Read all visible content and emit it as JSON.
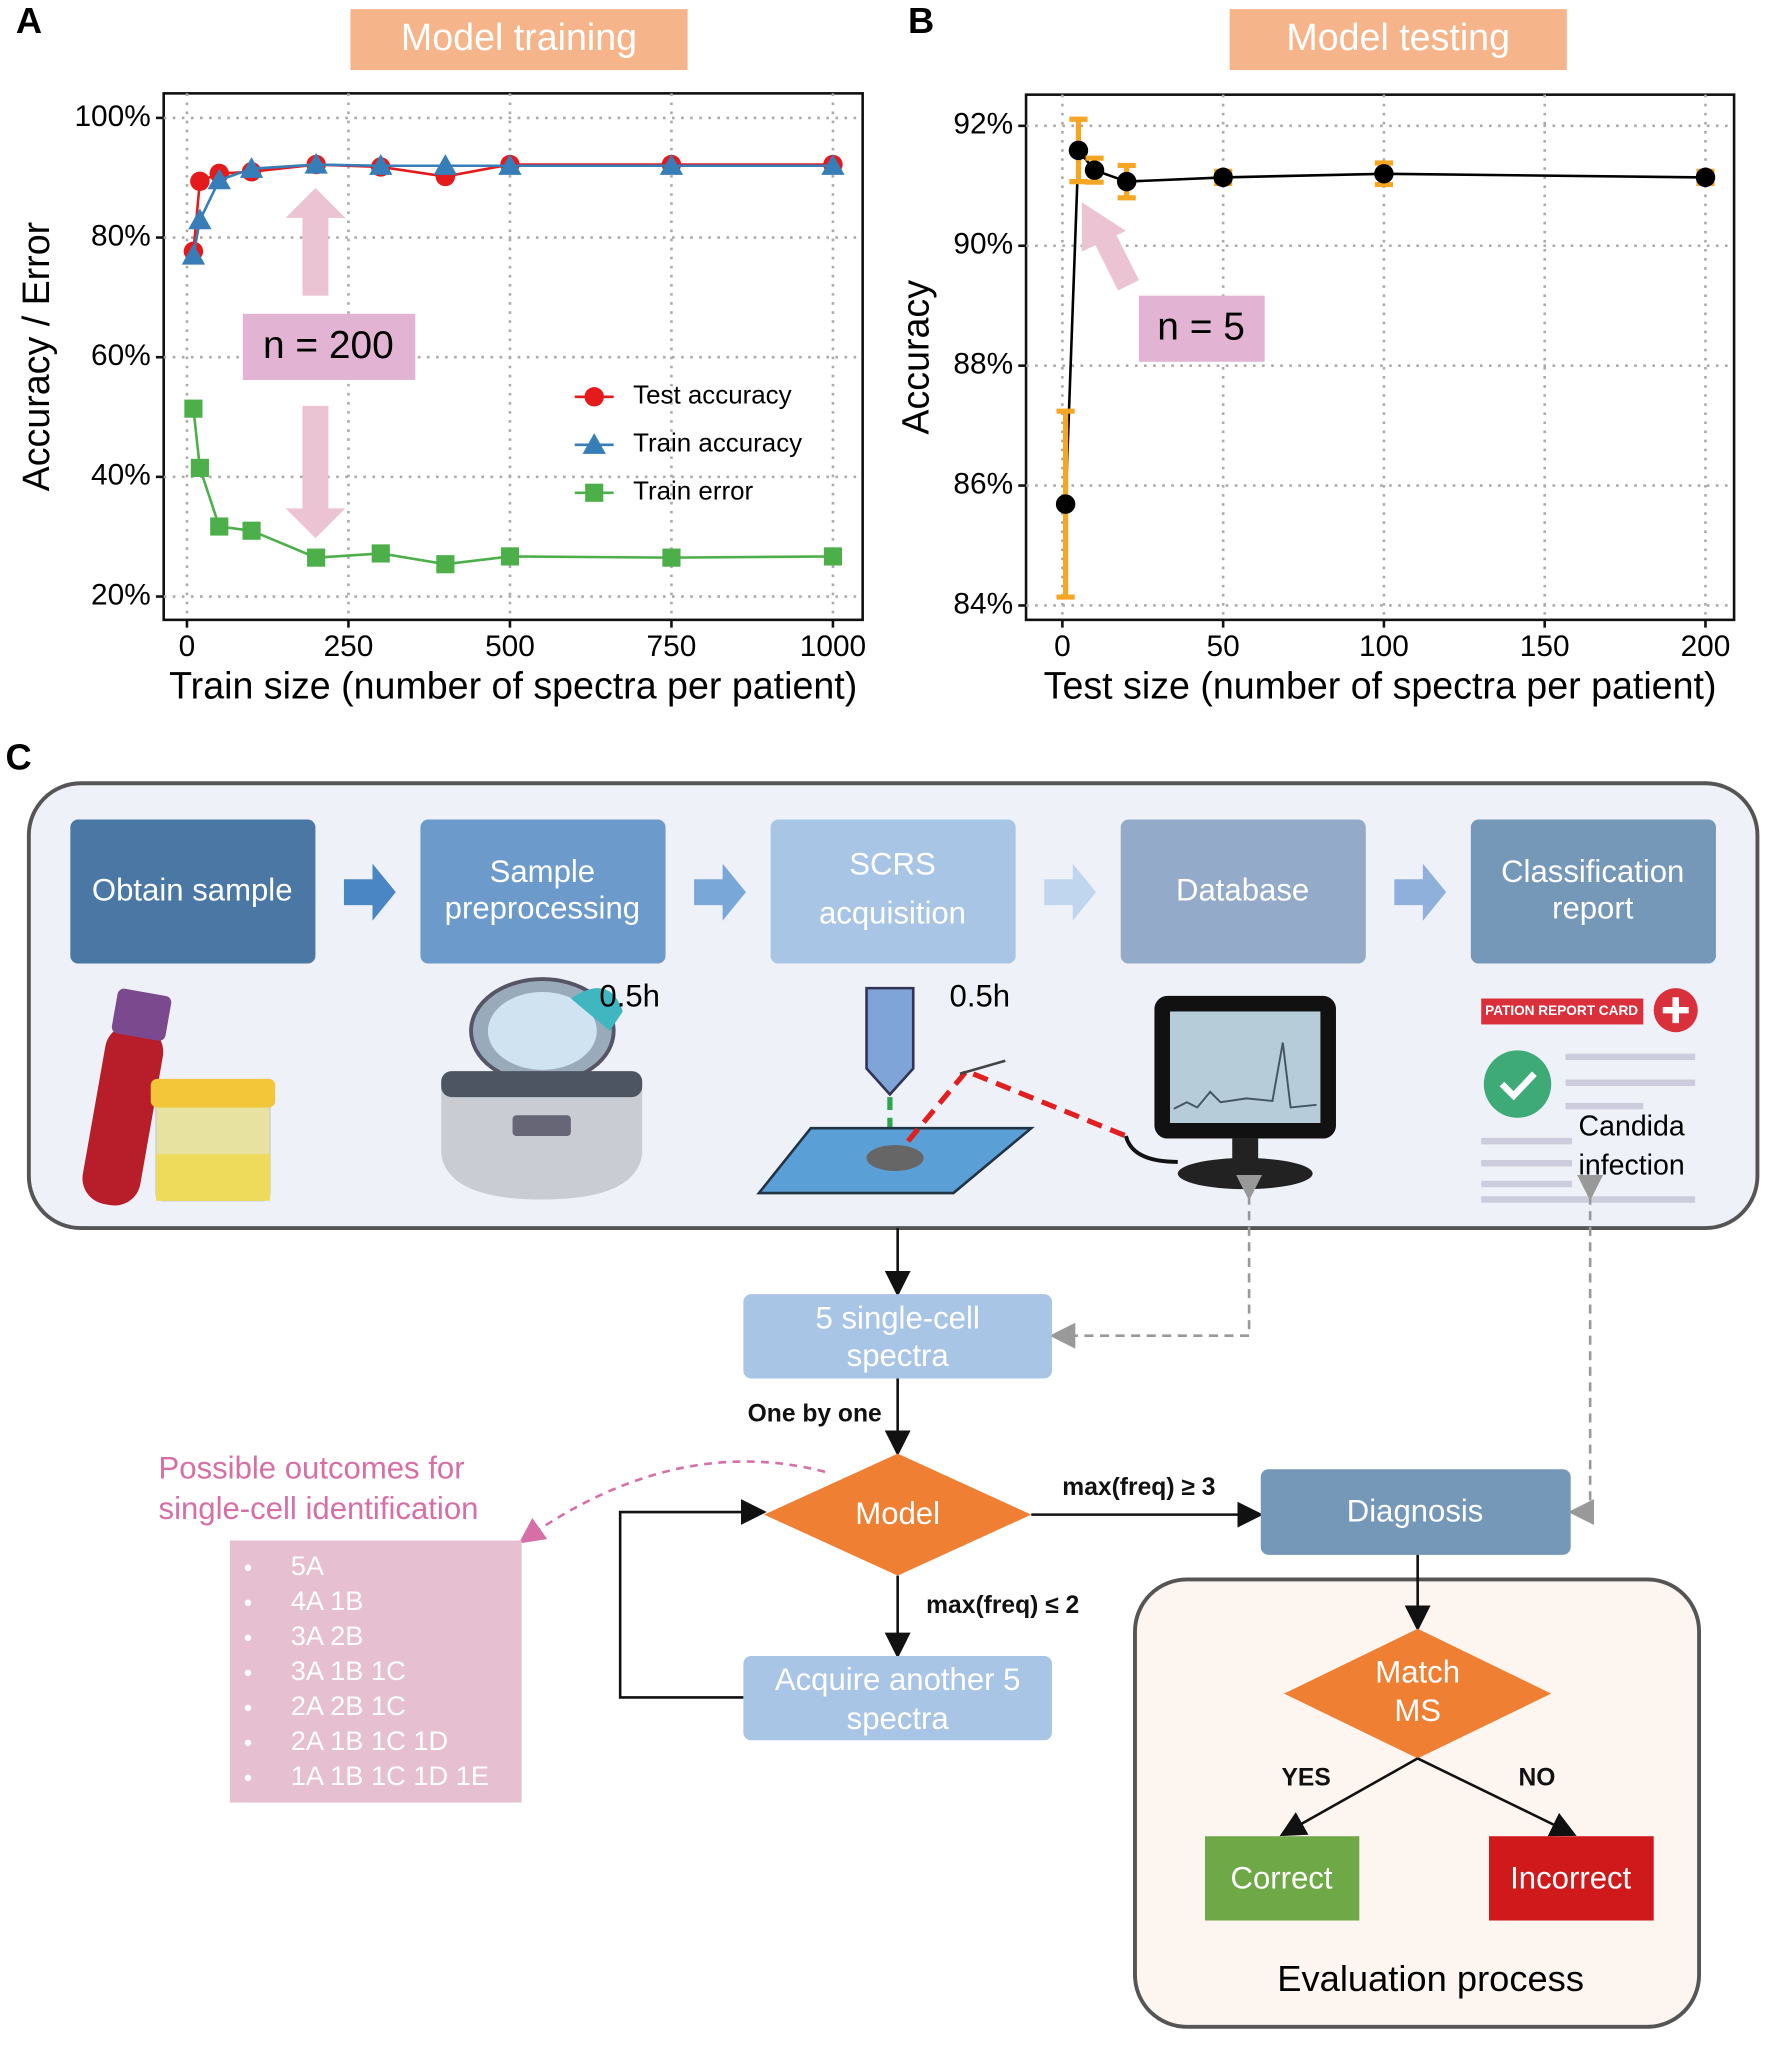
{
  "chart_data": [
    {
      "type": "line",
      "panel": "A",
      "title": "Model training",
      "xlabel": "Train size (number of spectra per patient)",
      "ylabel": "Accuracy / Error",
      "x": [
        10,
        20,
        50,
        100,
        200,
        300,
        400,
        500,
        750,
        1000
      ],
      "series": [
        {
          "name": "Test accuracy",
          "color": "#e41a1c",
          "marker": "circle",
          "values": [
            77.7,
            89.4,
            90.7,
            91.0,
            92.2,
            91.8,
            90.2,
            92.2,
            92.2,
            92.2
          ]
        },
        {
          "name": "Train accuracy",
          "color": "#377eb8",
          "marker": "triangle",
          "values": [
            77.0,
            82.9,
            89.6,
            91.5,
            92.2,
            92.0,
            92.0,
            92.0,
            92.0,
            92.0
          ]
        },
        {
          "name": "Train error",
          "color": "#4daf4a",
          "marker": "square",
          "values": [
            51.4,
            41.5,
            31.7,
            31.0,
            26.5,
            27.2,
            25.4,
            26.7,
            26.5,
            26.7
          ]
        }
      ],
      "xlim": [
        -36,
        1046
      ],
      "xticks": [
        0,
        250,
        500,
        750,
        1000
      ],
      "ylim": [
        16.1,
        104.1
      ],
      "yticks": [
        {
          "value": 20,
          "label": "20%"
        },
        {
          "value": 40,
          "label": "40%"
        },
        {
          "value": 60,
          "label": "60%"
        },
        {
          "value": 80,
          "label": "80%"
        },
        {
          "value": 100,
          "label": "100%"
        }
      ],
      "grid": true,
      "legend": "right",
      "annotation": "n = 200"
    },
    {
      "type": "errorbar",
      "panel": "B",
      "title": "Model testing",
      "xlabel": "Test size (number of spectra per patient)",
      "ylabel": "Accuracy",
      "x": [
        1,
        5,
        10,
        20,
        50,
        100,
        200
      ],
      "values": [
        85.69,
        91.59,
        91.26,
        91.07,
        91.14,
        91.2,
        91.14
      ],
      "errors": [
        1.55,
        0.52,
        0.2,
        0.27,
        0.1,
        0.18,
        0.1
      ],
      "color": "#000000",
      "error_color": "#f5a623",
      "xlim": [
        -11.3,
        208.9
      ],
      "xticks": [
        0,
        50,
        100,
        150,
        200
      ],
      "ylim": [
        83.76,
        92.52
      ],
      "yticks": [
        {
          "value": 84,
          "label": "84%"
        },
        {
          "value": 86,
          "label": "86%"
        },
        {
          "value": 88,
          "label": "88%"
        },
        {
          "value": 90,
          "label": "90%"
        },
        {
          "value": 92,
          "label": "92%"
        }
      ],
      "grid": true,
      "annotation": "n = 5"
    }
  ],
  "diagram": {
    "panel": "C",
    "steps": [
      [
        "Obtain sample"
      ],
      [
        "Sample",
        "preprocessing"
      ],
      [
        "SCRS",
        "acquisition"
      ],
      [
        "Database"
      ],
      [
        "Classification",
        "report"
      ]
    ],
    "times": [
      "0.5h",
      "0.5h"
    ],
    "report_card": "PATION REPORT CARD",
    "report_result": [
      "Candida",
      "infection"
    ],
    "spectra": [
      "5 single-cell",
      "spectra"
    ],
    "one_by_one": "One by one",
    "model": "Model",
    "cond_high": "max(freq) ≥ 3",
    "cond_low": "max(freq) ≤ 2",
    "acquire": [
      "Acquire another 5",
      "spectra"
    ],
    "diagnosis": "Diagnosis",
    "match": [
      "Match",
      "MS"
    ],
    "yes": "YES",
    "no": "NO",
    "correct": "Correct",
    "incorrect": "Incorrect",
    "evaluation": "Evaluation process",
    "outcomes_title": [
      "Possible outcomes for",
      "single-cell identification"
    ],
    "outcomes": [
      "5A",
      "4A 1B",
      "3A 2B",
      "3A 1B 1C",
      "2A 2B 1C",
      "2A 1B 1C 1D",
      "1A 1B 1C 1D 1E"
    ]
  }
}
